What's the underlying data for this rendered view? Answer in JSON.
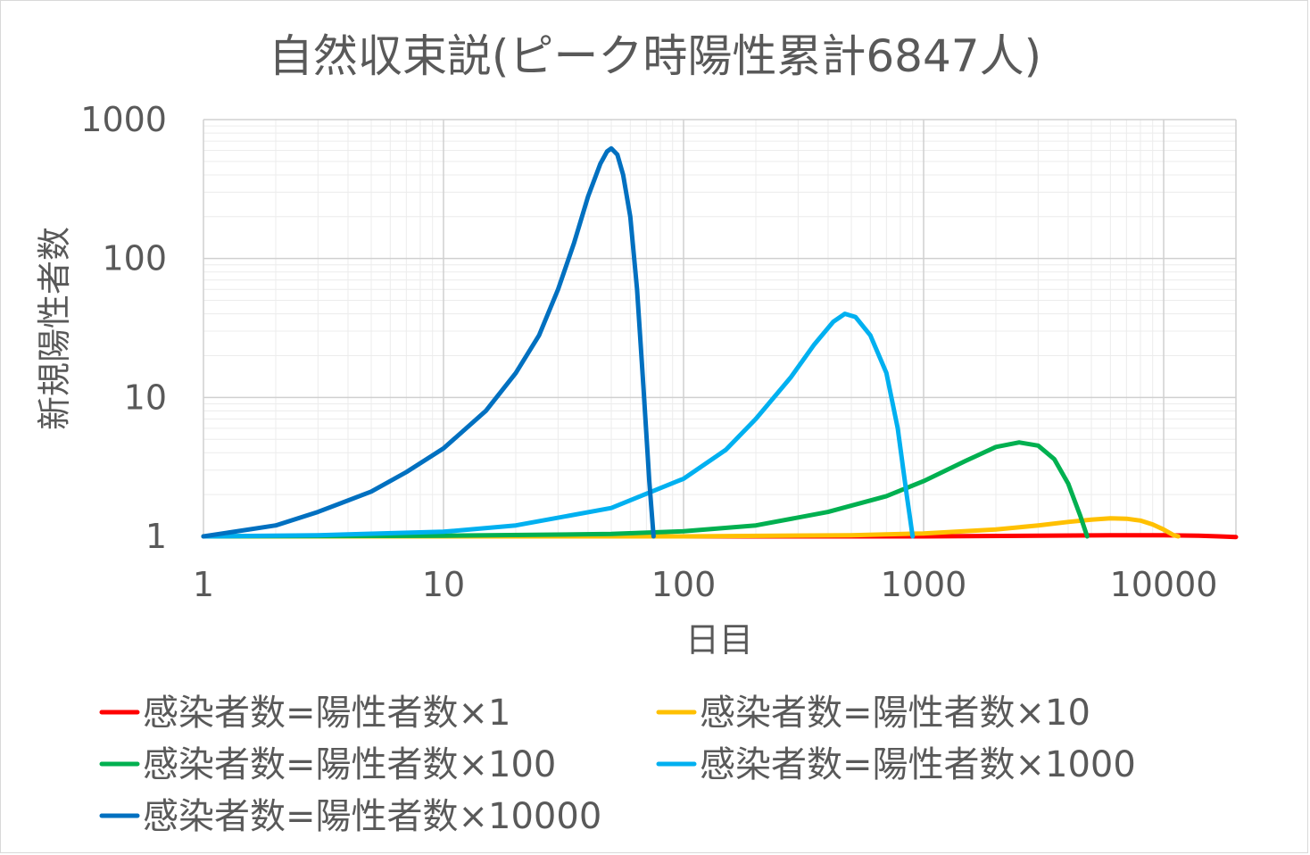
{
  "chart_data": {
    "type": "line",
    "title": "自然収束説(ピーク時陽性累計6847人)",
    "xlabel": "日目",
    "ylabel": "新規陽性者数",
    "x_scale": "log",
    "y_scale": "log",
    "xlim": [
      1,
      20000
    ],
    "ylim": [
      1,
      1000
    ],
    "x_ticks": [
      "1",
      "10",
      "100",
      "1000",
      "10000"
    ],
    "y_ticks": [
      "1",
      "10",
      "100",
      "1000"
    ],
    "grid": true,
    "legend_position": "bottom",
    "series": [
      {
        "name": "感染者数=陽性者数×1",
        "color": "#ff0000",
        "points": [
          [
            1,
            1
          ],
          [
            100,
            1.0
          ],
          [
            1000,
            1.0
          ],
          [
            3000,
            1.01
          ],
          [
            6000,
            1.02
          ],
          [
            10000,
            1.02
          ],
          [
            14000,
            1.01
          ],
          [
            17000,
            1.0
          ],
          [
            20000,
            0.99
          ]
        ]
      },
      {
        "name": "感染者数=陽性者数×10",
        "color": "#ffc000",
        "points": [
          [
            1,
            1
          ],
          [
            100,
            1.0
          ],
          [
            500,
            1.02
          ],
          [
            1000,
            1.05
          ],
          [
            2000,
            1.12
          ],
          [
            3000,
            1.2
          ],
          [
            4000,
            1.27
          ],
          [
            5000,
            1.32
          ],
          [
            6000,
            1.35
          ],
          [
            7000,
            1.34
          ],
          [
            8000,
            1.3
          ],
          [
            9000,
            1.22
          ],
          [
            10000,
            1.12
          ],
          [
            11000,
            1.02
          ],
          [
            11500,
            1.0
          ]
        ]
      },
      {
        "name": "感染者数=陽性者数×100",
        "color": "#00b050",
        "points": [
          [
            1,
            1
          ],
          [
            10,
            1.01
          ],
          [
            50,
            1.04
          ],
          [
            100,
            1.09
          ],
          [
            200,
            1.2
          ],
          [
            400,
            1.5
          ],
          [
            700,
            1.95
          ],
          [
            1000,
            2.5
          ],
          [
            1500,
            3.5
          ],
          [
            2000,
            4.4
          ],
          [
            2500,
            4.75
          ],
          [
            3000,
            4.5
          ],
          [
            3500,
            3.6
          ],
          [
            4000,
            2.4
          ],
          [
            4500,
            1.4
          ],
          [
            4800,
            1.0
          ]
        ]
      },
      {
        "name": "感染者数=陽性者数×1000",
        "color": "#00b0f0",
        "points": [
          [
            1,
            1
          ],
          [
            3,
            1.02
          ],
          [
            10,
            1.08
          ],
          [
            20,
            1.2
          ],
          [
            50,
            1.6
          ],
          [
            100,
            2.6
          ],
          [
            150,
            4.2
          ],
          [
            200,
            7
          ],
          [
            280,
            14
          ],
          [
            350,
            24
          ],
          [
            420,
            35
          ],
          [
            470,
            40
          ],
          [
            520,
            38
          ],
          [
            600,
            28
          ],
          [
            700,
            15
          ],
          [
            780,
            6
          ],
          [
            850,
            2
          ],
          [
            900,
            1.0
          ]
        ]
      },
      {
        "name": "感染者数=陽性者数×10000",
        "color": "#0070c0",
        "points": [
          [
            1,
            1
          ],
          [
            2,
            1.2
          ],
          [
            3,
            1.5
          ],
          [
            5,
            2.1
          ],
          [
            7,
            2.9
          ],
          [
            10,
            4.3
          ],
          [
            15,
            8
          ],
          [
            20,
            15
          ],
          [
            25,
            28
          ],
          [
            30,
            60
          ],
          [
            35,
            130
          ],
          [
            40,
            280
          ],
          [
            45,
            480
          ],
          [
            48,
            590
          ],
          [
            50,
            620
          ],
          [
            53,
            560
          ],
          [
            56,
            400
          ],
          [
            60,
            200
          ],
          [
            64,
            60
          ],
          [
            68,
            12
          ],
          [
            72,
            2.5
          ],
          [
            75,
            1.0
          ]
        ]
      }
    ]
  }
}
